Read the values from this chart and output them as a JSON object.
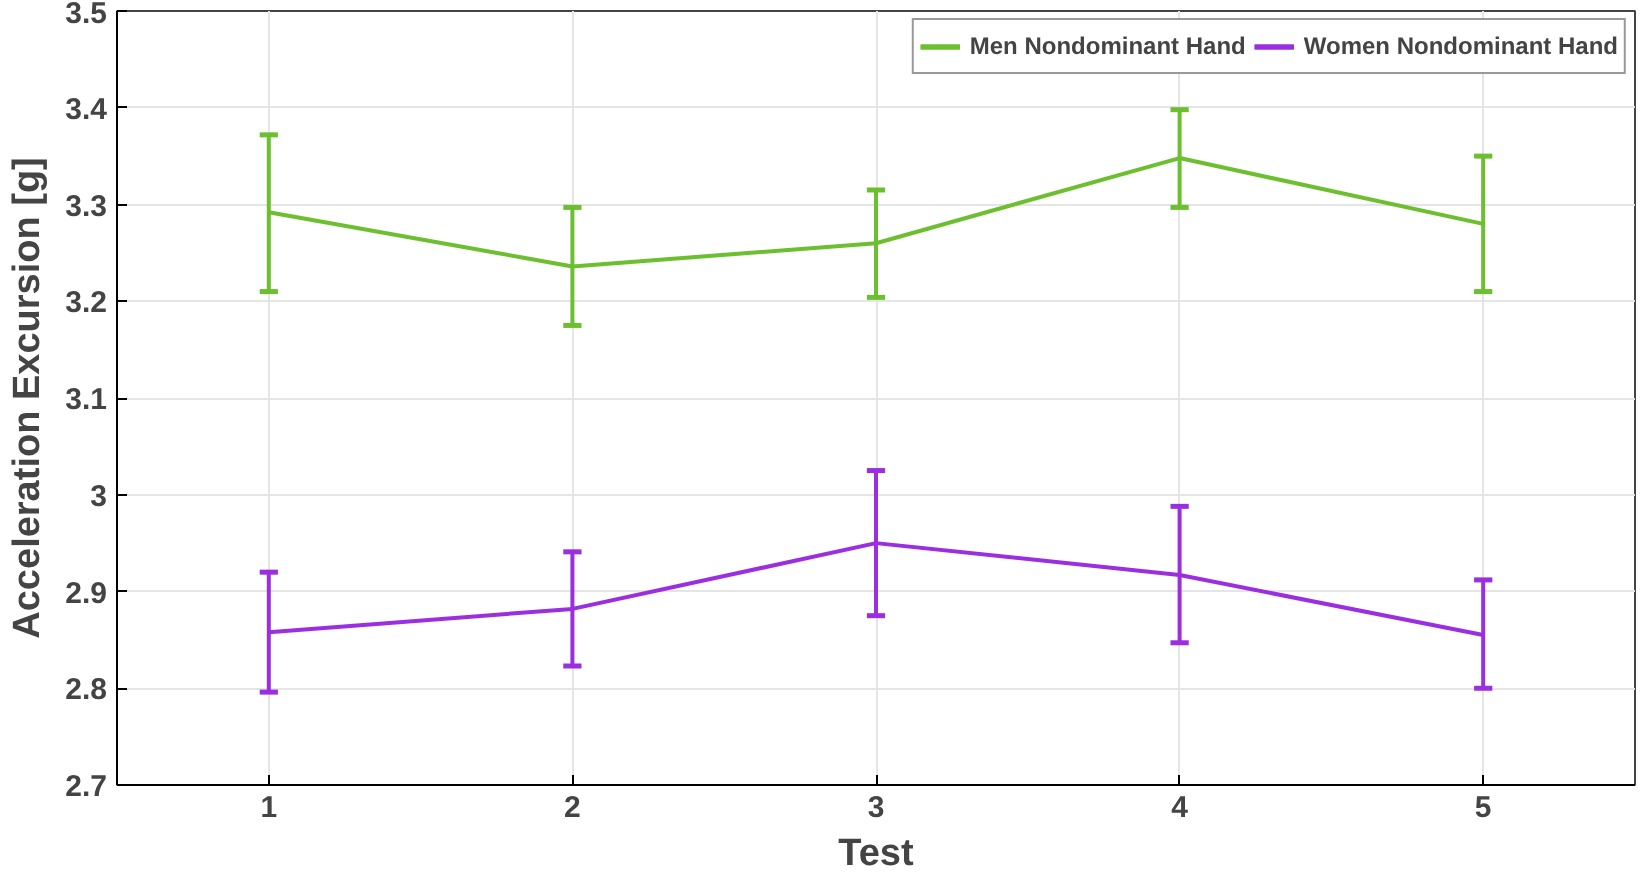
{
  "chart_data": {
    "type": "line",
    "xlabel": "Test",
    "ylabel": "Acceleration Excursion [g]",
    "x": [
      1,
      2,
      3,
      4,
      5
    ],
    "series": [
      {
        "name": "Men Nondominant Hand",
        "color": "#6cbf2f",
        "values": [
          3.292,
          3.236,
          3.26,
          3.348,
          3.28
        ],
        "errors": [
          [
            3.21,
            3.372
          ],
          [
            3.175,
            3.297
          ],
          [
            3.204,
            3.315
          ],
          [
            3.297,
            3.398
          ],
          [
            3.21,
            3.35
          ]
        ]
      },
      {
        "name": "Women Nondominant Hand",
        "color": "#9b2ee0",
        "values": [
          2.858,
          2.882,
          2.95,
          2.917,
          2.855
        ],
        "errors": [
          [
            2.796,
            2.92
          ],
          [
            2.823,
            2.941
          ],
          [
            2.875,
            3.025
          ],
          [
            2.847,
            2.988
          ],
          [
            2.8,
            2.912
          ]
        ]
      }
    ],
    "xlim": [
      0.5,
      5.5
    ],
    "xticks": [
      1,
      2,
      3,
      4,
      5
    ],
    "ylim": [
      2.7,
      3.5
    ],
    "yticks": [
      2.7,
      2.8,
      2.9,
      3,
      3.1,
      3.2,
      3.3,
      3.4,
      3.5
    ],
    "grid": true,
    "legend": "top right",
    "marker": "none",
    "line_style": "solid"
  }
}
